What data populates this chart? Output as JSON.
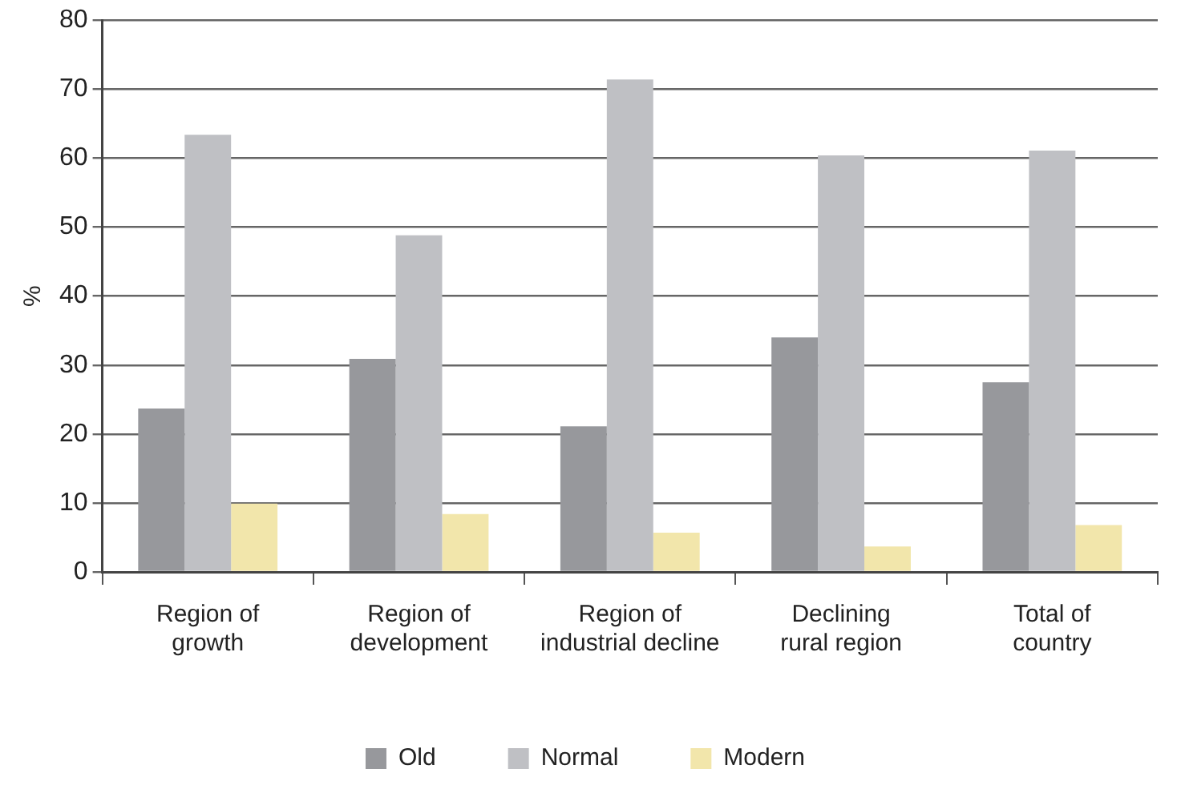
{
  "chart_data": {
    "type": "bar",
    "ylabel": "%",
    "categories": [
      "Region of growth",
      "Region of development",
      "Region of industrial decline",
      "Declining rural region",
      "Total of country"
    ],
    "series": [
      {
        "name": "Old",
        "color": "#97989c",
        "values": [
          23.7,
          30.9,
          21.1,
          34.0,
          27.5
        ]
      },
      {
        "name": "Normal",
        "color": "#bfc0c4",
        "values": [
          63.4,
          48.8,
          71.4,
          60.4,
          61.1
        ]
      },
      {
        "name": "Modern",
        "color": "#f2e6ab",
        "values": [
          9.9,
          8.4,
          5.7,
          3.7,
          6.8
        ]
      }
    ],
    "ylim": [
      0,
      80
    ],
    "yticks": [
      0,
      10,
      20,
      30,
      40,
      50,
      60,
      70,
      80
    ],
    "grid": "y",
    "legend": "bottom"
  }
}
